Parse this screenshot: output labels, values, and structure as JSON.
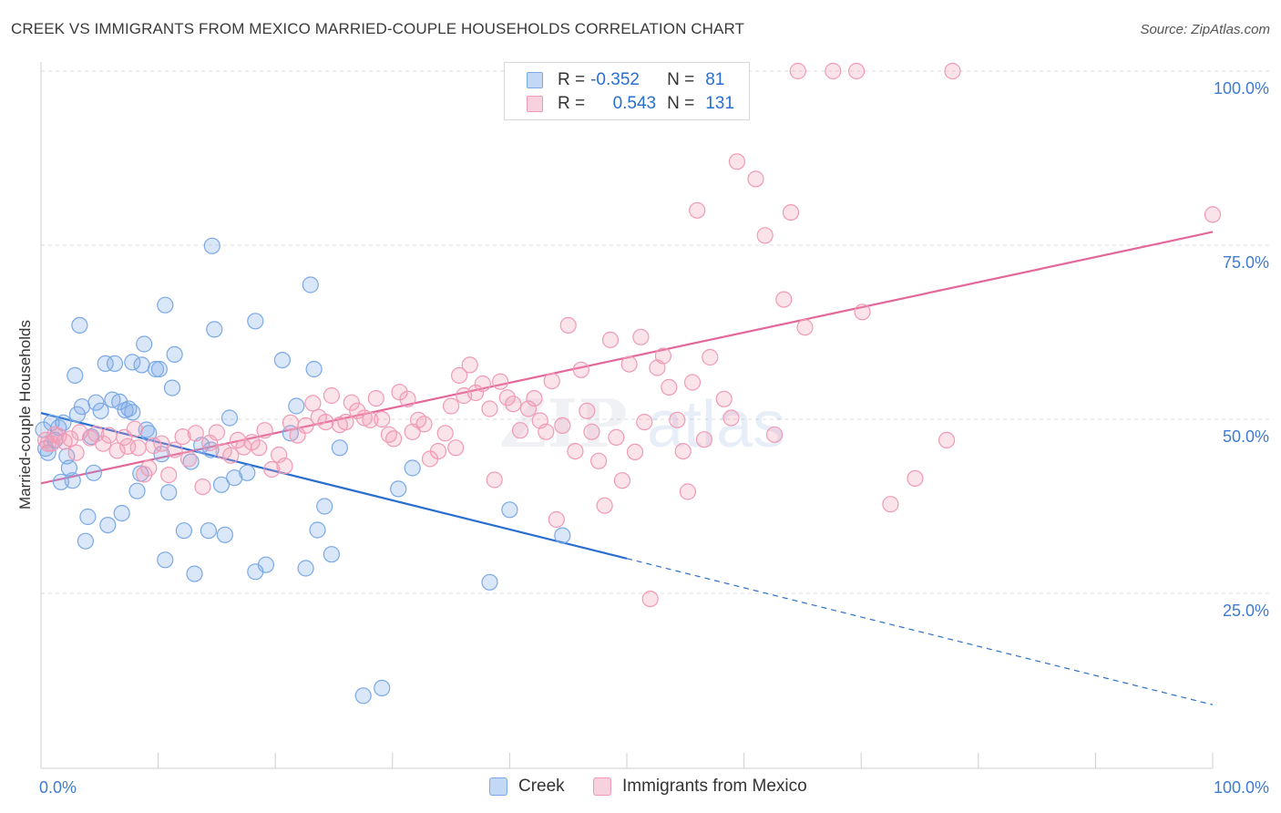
{
  "title": "CREEK VS IMMIGRANTS FROM MEXICO MARRIED-COUPLE HOUSEHOLDS CORRELATION CHART",
  "source": "Source: ZipAtlas.com",
  "watermark": "ZIPatlas",
  "legend": {
    "rows": [
      {
        "r_label": "R =",
        "r_value": "-0.352",
        "n_label": "N =",
        "n_value": "81",
        "color": "#7aa9e6"
      },
      {
        "r_label": "R =",
        "r_value": "0.543",
        "n_label": "N =",
        "n_value": "131",
        "color": "#f09ab5"
      }
    ]
  },
  "bottom_legend": [
    "Creek",
    "Immigrants from Mexico"
  ],
  "chart_data": {
    "type": "scatter",
    "title": "CREEK VS IMMIGRANTS FROM MEXICO MARRIED-COUPLE HOUSEHOLDS CORRELATION CHART",
    "xlabel": "",
    "ylabel": "Married-couple Households",
    "xlim": [
      0,
      100
    ],
    "ylim": [
      0,
      104
    ],
    "x_tick_labels": [
      "0.0%",
      "100.0%"
    ],
    "y_tick_labels": [
      "25.0%",
      "50.0%",
      "75.0%",
      "100.0%"
    ],
    "y_ticks": [
      25,
      50,
      75,
      100
    ],
    "grid": true,
    "legend_position": "top-center",
    "series": [
      {
        "name": "Creek",
        "color": "#7aa9e6",
        "line_color": "#2a6fd0",
        "trend": {
          "x0": 0,
          "y0": 50.9,
          "x1": 50,
          "y1": 30.0,
          "dash_to_x": 100,
          "dash_to_y": 9.0
        },
        "points": [
          [
            0.2,
            48.5
          ],
          [
            0.4,
            45.8
          ],
          [
            0.6,
            45.2
          ],
          [
            0.9,
            49.5
          ],
          [
            1.2,
            47.0
          ],
          [
            1.5,
            48.8
          ],
          [
            1.7,
            41.0
          ],
          [
            1.9,
            49.5
          ],
          [
            2.2,
            44.7
          ],
          [
            2.4,
            43.0
          ],
          [
            2.7,
            41.2
          ],
          [
            2.9,
            56.3
          ],
          [
            3.1,
            50.7
          ],
          [
            3.3,
            63.5
          ],
          [
            3.5,
            51.8
          ],
          [
            3.8,
            32.5
          ],
          [
            4.0,
            36.0
          ],
          [
            4.3,
            47.5
          ],
          [
            4.5,
            42.3
          ],
          [
            4.7,
            52.4
          ],
          [
            5.1,
            51.2
          ],
          [
            5.5,
            58.0
          ],
          [
            5.7,
            34.8
          ],
          [
            6.1,
            52.8
          ],
          [
            6.3,
            58.0
          ],
          [
            6.7,
            52.5
          ],
          [
            6.9,
            36.5
          ],
          [
            7.2,
            51.3
          ],
          [
            7.5,
            51.5
          ],
          [
            7.8,
            51.0
          ],
          [
            7.8,
            58.2
          ],
          [
            8.2,
            39.7
          ],
          [
            8.5,
            42.2
          ],
          [
            8.6,
            57.8
          ],
          [
            8.8,
            60.8
          ],
          [
            9.0,
            48.5
          ],
          [
            9.2,
            48.0
          ],
          [
            9.8,
            57.2
          ],
          [
            10.1,
            57.2
          ],
          [
            10.3,
            45.0
          ],
          [
            10.6,
            66.4
          ],
          [
            10.6,
            29.8
          ],
          [
            10.9,
            39.5
          ],
          [
            11.2,
            54.5
          ],
          [
            11.4,
            59.3
          ],
          [
            12.2,
            34.0
          ],
          [
            12.8,
            43.9
          ],
          [
            13.1,
            27.8
          ],
          [
            13.7,
            46.3
          ],
          [
            14.3,
            34.0
          ],
          [
            14.5,
            45.6
          ],
          [
            14.6,
            74.9
          ],
          [
            14.8,
            62.9
          ],
          [
            15.4,
            40.6
          ],
          [
            15.7,
            33.4
          ],
          [
            16.1,
            50.2
          ],
          [
            16.5,
            41.6
          ],
          [
            17.6,
            42.3
          ],
          [
            18.3,
            64.1
          ],
          [
            18.3,
            28.1
          ],
          [
            19.2,
            29.1
          ],
          [
            20.6,
            58.5
          ],
          [
            21.3,
            48.0
          ],
          [
            21.8,
            51.9
          ],
          [
            22.6,
            28.6
          ],
          [
            23.0,
            69.3
          ],
          [
            23.3,
            57.2
          ],
          [
            23.6,
            34.1
          ],
          [
            24.2,
            37.5
          ],
          [
            24.8,
            30.6
          ],
          [
            25.5,
            45.9
          ],
          [
            27.5,
            10.3
          ],
          [
            29.1,
            11.4
          ],
          [
            30.5,
            40.0
          ],
          [
            31.7,
            43.0
          ],
          [
            38.3,
            26.6
          ],
          [
            40.0,
            37.0
          ],
          [
            44.5,
            33.3
          ]
        ]
      },
      {
        "name": "Immigrants from Mexico",
        "color": "#f09ab5",
        "line_color": "#e3679a",
        "trend": {
          "x0": 0,
          "y0": 40.8,
          "x1": 100,
          "y1": 76.9
        },
        "points": [
          [
            0.4,
            47.0
          ],
          [
            0.6,
            46.5
          ],
          [
            0.9,
            46.5
          ],
          [
            1.2,
            47.8
          ],
          [
            1.5,
            47.6
          ],
          [
            2.0,
            46.8
          ],
          [
            2.5,
            47.2
          ],
          [
            3.0,
            45.2
          ],
          [
            3.3,
            48.1
          ],
          [
            4.2,
            47.3
          ],
          [
            4.7,
            47.9
          ],
          [
            5.3,
            46.5
          ],
          [
            5.8,
            47.7
          ],
          [
            6.5,
            45.5
          ],
          [
            7.1,
            47.4
          ],
          [
            7.4,
            46.1
          ],
          [
            8.0,
            48.6
          ],
          [
            8.3,
            45.9
          ],
          [
            8.8,
            42.1
          ],
          [
            9.2,
            43.0
          ],
          [
            9.6,
            46.2
          ],
          [
            10.3,
            46.5
          ],
          [
            10.9,
            42.0
          ],
          [
            11.4,
            45.6
          ],
          [
            12.1,
            47.5
          ],
          [
            12.6,
            44.3
          ],
          [
            13.2,
            48.0
          ],
          [
            13.8,
            40.3
          ],
          [
            14.4,
            46.6
          ],
          [
            15.0,
            48.1
          ],
          [
            15.6,
            45.4
          ],
          [
            16.2,
            44.8
          ],
          [
            16.8,
            47.0
          ],
          [
            17.3,
            46.0
          ],
          [
            18.0,
            46.7
          ],
          [
            18.6,
            45.9
          ],
          [
            19.1,
            48.4
          ],
          [
            19.7,
            42.8
          ],
          [
            20.3,
            44.9
          ],
          [
            20.8,
            43.3
          ],
          [
            21.3,
            49.5
          ],
          [
            21.9,
            47.7
          ],
          [
            22.6,
            49.1
          ],
          [
            23.2,
            52.3
          ],
          [
            23.7,
            50.3
          ],
          [
            24.3,
            49.6
          ],
          [
            24.8,
            53.4
          ],
          [
            25.5,
            49.2
          ],
          [
            26.0,
            49.6
          ],
          [
            26.5,
            52.4
          ],
          [
            27.0,
            51.2
          ],
          [
            27.6,
            50.2
          ],
          [
            28.1,
            49.9
          ],
          [
            28.6,
            53.0
          ],
          [
            29.1,
            50.0
          ],
          [
            29.7,
            47.8
          ],
          [
            30.1,
            47.2
          ],
          [
            30.6,
            53.9
          ],
          [
            31.3,
            52.9
          ],
          [
            31.7,
            48.2
          ],
          [
            32.2,
            49.9
          ],
          [
            32.7,
            49.3
          ],
          [
            33.2,
            44.3
          ],
          [
            33.9,
            45.4
          ],
          [
            34.5,
            48.0
          ],
          [
            35.0,
            51.9
          ],
          [
            35.4,
            45.9
          ],
          [
            35.7,
            56.3
          ],
          [
            36.1,
            53.4
          ],
          [
            36.6,
            57.8
          ],
          [
            37.1,
            53.8
          ],
          [
            37.7,
            55.1
          ],
          [
            38.3,
            51.5
          ],
          [
            38.7,
            41.3
          ],
          [
            39.2,
            55.4
          ],
          [
            39.8,
            53.1
          ],
          [
            40.3,
            52.2
          ],
          [
            40.9,
            48.4
          ],
          [
            41.6,
            51.5
          ],
          [
            42.1,
            53.0
          ],
          [
            42.6,
            49.8
          ],
          [
            43.1,
            48.2
          ],
          [
            43.6,
            55.5
          ],
          [
            44.0,
            35.6
          ],
          [
            44.5,
            49.1
          ],
          [
            45.0,
            63.5
          ],
          [
            45.6,
            45.4
          ],
          [
            46.1,
            57.1
          ],
          [
            46.6,
            51.2
          ],
          [
            47.0,
            48.2
          ],
          [
            47.6,
            44.0
          ],
          [
            48.1,
            37.6
          ],
          [
            48.6,
            61.4
          ],
          [
            49.1,
            47.4
          ],
          [
            49.6,
            41.2
          ],
          [
            50.2,
            57.9
          ],
          [
            50.7,
            45.3
          ],
          [
            51.2,
            61.8
          ],
          [
            51.5,
            49.6
          ],
          [
            52.0,
            24.2
          ],
          [
            52.6,
            57.4
          ],
          [
            53.1,
            59.1
          ],
          [
            53.6,
            54.6
          ],
          [
            54.3,
            49.9
          ],
          [
            54.8,
            45.4
          ],
          [
            55.2,
            39.6
          ],
          [
            55.6,
            55.3
          ],
          [
            56.0,
            80.0
          ],
          [
            56.6,
            47.1
          ],
          [
            57.1,
            58.9
          ],
          [
            57.6,
            100.0
          ],
          [
            58.3,
            52.9
          ],
          [
            58.9,
            50.2
          ],
          [
            59.4,
            87.0
          ],
          [
            61.0,
            84.5
          ],
          [
            61.8,
            76.4
          ],
          [
            62.6,
            47.8
          ],
          [
            63.4,
            67.2
          ],
          [
            64.0,
            79.7
          ],
          [
            64.6,
            100.0
          ],
          [
            65.2,
            63.2
          ],
          [
            67.6,
            100.0
          ],
          [
            69.6,
            100.0
          ],
          [
            70.1,
            65.4
          ],
          [
            72.5,
            37.8
          ],
          [
            74.6,
            41.5
          ],
          [
            77.3,
            47.0
          ],
          [
            77.8,
            100.0
          ],
          [
            100.0,
            79.4
          ]
        ]
      }
    ]
  }
}
